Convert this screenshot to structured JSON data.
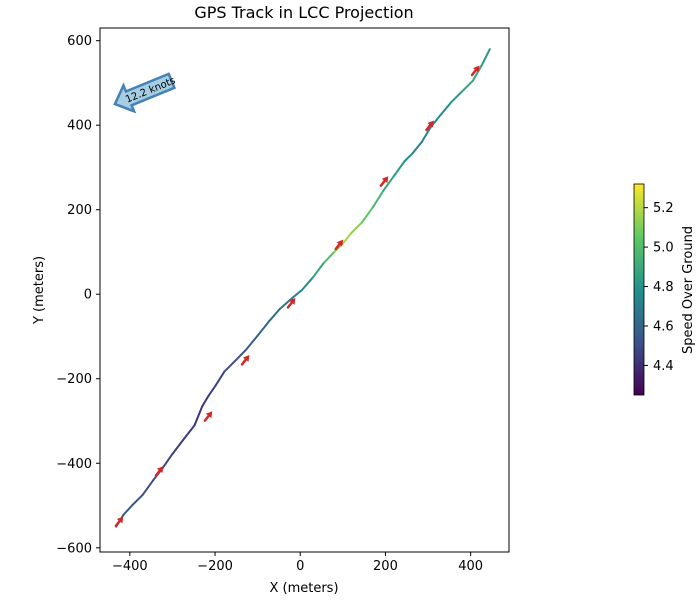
{
  "chart_data": {
    "type": "line",
    "title": "GPS Track in LCC Projection",
    "xlabel": "X (meters)",
    "ylabel": "Y (meters)",
    "xlim": [
      -470,
      490
    ],
    "ylim": [
      -610,
      630
    ],
    "xticks": [
      -400,
      -200,
      0,
      200,
      400
    ],
    "xtick_labels": [
      "−400",
      "−200",
      "0",
      "200",
      "400"
    ],
    "yticks": [
      -600,
      -400,
      -200,
      0,
      200,
      400,
      600
    ],
    "ytick_labels": [
      "−600",
      "−400",
      "−200",
      "0",
      "200",
      "400",
      "600"
    ],
    "grid": false,
    "track": {
      "x": [
        -432,
        -415,
        -395,
        -370,
        -345,
        -322,
        -300,
        -275,
        -248,
        -230,
        -215,
        -198,
        -178,
        -150,
        -126,
        -100,
        -74,
        -48,
        -20,
        4,
        30,
        56,
        80,
        100,
        120,
        145,
        170,
        195,
        220,
        245,
        265,
        285,
        306,
        330,
        355,
        380,
        405,
        425,
        445
      ],
      "y": [
        -550,
        -522,
        -500,
        -475,
        -440,
        -410,
        -378,
        -345,
        -310,
        -265,
        -240,
        -215,
        -183,
        -155,
        -130,
        -98,
        -65,
        -35,
        -10,
        10,
        40,
        75,
        100,
        120,
        145,
        170,
        205,
        245,
        280,
        315,
        335,
        360,
        395,
        425,
        455,
        480,
        505,
        540,
        580
      ],
      "speed": [
        4.6,
        4.55,
        4.55,
        4.5,
        4.5,
        4.5,
        4.45,
        4.45,
        4.45,
        4.4,
        4.45,
        4.45,
        4.5,
        4.5,
        4.55,
        4.6,
        4.6,
        4.65,
        4.7,
        4.75,
        4.8,
        4.95,
        5.05,
        5.2,
        5.15,
        5.1,
        5.0,
        4.9,
        4.85,
        4.8,
        4.75,
        4.7,
        4.75,
        4.75,
        4.8,
        4.85,
        4.9,
        4.85,
        4.8
      ]
    },
    "speed_arrows": [
      {
        "x": -424,
        "y": -537
      },
      {
        "x": -330,
        "y": -418
      },
      {
        "x": -215,
        "y": -288
      },
      {
        "x": -128,
        "y": -155
      },
      {
        "x": -20,
        "y": -20
      },
      {
        "x": 92,
        "y": 118
      },
      {
        "x": 198,
        "y": 268
      },
      {
        "x": 305,
        "y": 400
      },
      {
        "x": 412,
        "y": 530
      }
    ],
    "wind": {
      "label": "12.2 knots",
      "tail_x": -302,
      "tail_y": 505,
      "head_x": -435,
      "head_y": 450
    },
    "colorbar": {
      "label": "Speed Over Ground",
      "colormap": "viridis",
      "vmin": 4.25,
      "vmax": 5.32,
      "ticks": [
        4.4,
        4.6,
        4.8,
        5.0,
        5.2
      ],
      "tick_labels": [
        "4.4",
        "4.6",
        "4.8",
        "5.0",
        "5.2"
      ]
    },
    "arrow_color": "#d62728",
    "wind_arrow_fill": "#a6cee3",
    "wind_arrow_edge": "#4682b4"
  }
}
